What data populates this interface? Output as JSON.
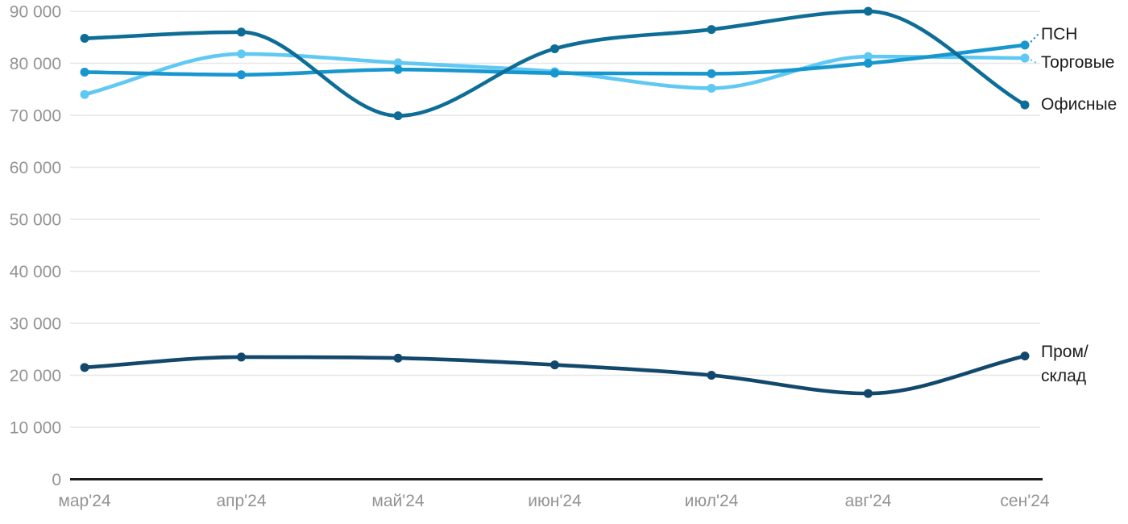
{
  "chart_data": {
    "type": "line",
    "title": "",
    "categories": [
      "мар'24",
      "апр'24",
      "май'24",
      "июн'24",
      "июл'24",
      "авг'24",
      "сен'24"
    ],
    "series": [
      {
        "name": "ПСН",
        "color": "#1897cf",
        "values": [
          78300,
          77800,
          78800,
          78100,
          78000,
          80000,
          83500
        ],
        "label_lines": [
          "ПСН"
        ],
        "leader": true
      },
      {
        "name": "Торговые",
        "color": "#5fc8f3",
        "values": [
          74000,
          81800,
          80100,
          78400,
          75200,
          81300,
          81000
        ],
        "label_lines": [
          "Торговые"
        ],
        "leader": true
      },
      {
        "name": "Офисные",
        "color": "#0d6d96",
        "values": [
          84800,
          86000,
          69900,
          82800,
          86500,
          90000,
          72000
        ],
        "label_lines": [
          "Офисные"
        ],
        "leader": false
      },
      {
        "name": "Пром/склад",
        "color": "#12486c",
        "values": [
          21500,
          23500,
          23300,
          22000,
          20000,
          16500,
          23700
        ],
        "label_lines": [
          "Пром/",
          "склад"
        ],
        "leader": false
      }
    ],
    "y_axis": {
      "min": 0,
      "max": 90000,
      "step": 10000,
      "tick_labels": [
        "0",
        "10 000",
        "20 000",
        "30 000",
        "40 000",
        "50 000",
        "60 000",
        "70 000",
        "80 000",
        "90 000"
      ]
    },
    "grid": true,
    "legend_position": "right-of-line-end",
    "colors": {
      "axis_line": "#1b1b1b",
      "grid_line": "#e7e7e7",
      "tick_text": "#939393",
      "label_text": "#1c1c1c"
    }
  }
}
